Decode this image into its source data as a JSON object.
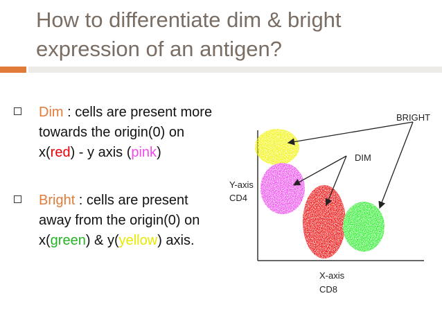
{
  "slide": {
    "title": "How to differentiate dim & bright expression of an antigen?"
  },
  "bullets": [
    {
      "term": "Dim",
      "parts": [
        " : cells are present more towards the origin(0) on x(",
        "red",
        ") - y axis (",
        "pink",
        ")"
      ]
    },
    {
      "term": "Bright",
      "parts": [
        " : cells are present away from the origin(0) on x(",
        "green",
        ") & y(",
        "yellow",
        ") axis."
      ]
    }
  ],
  "diagram": {
    "labels": {
      "bright": "BRIGHT",
      "dim": "DIM",
      "y_axis_name": "Y-axis",
      "y_axis_marker": "CD4",
      "x_axis_name": "X-axis",
      "x_axis_marker": "CD8"
    },
    "clusters": [
      {
        "name": "yellow",
        "color": "#f2f200"
      },
      {
        "name": "pink",
        "color": "#ee44ee"
      },
      {
        "name": "red",
        "color": "#ee0000"
      },
      {
        "name": "green",
        "color": "#22ee22"
      }
    ]
  },
  "colors": {
    "title": "#7a6d63",
    "accent": "#e07b39",
    "red": "#e8000b",
    "pink": "#f04be8",
    "green": "#22b422",
    "yellow": "#e8e800"
  }
}
